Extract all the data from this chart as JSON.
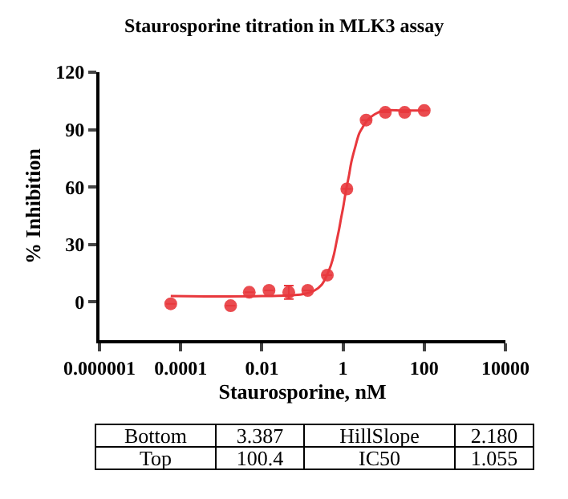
{
  "chart_data": {
    "type": "scatter",
    "title": "Staurosporine titration in MLK3 assay",
    "xlabel": "Staurosporine, nM",
    "ylabel": "% Inhibition",
    "log": "x",
    "xlim": [
      1e-06,
      10000
    ],
    "xticks": [
      {
        "value": 1e-06,
        "label": "0.000001"
      },
      {
        "value": 0.0001,
        "label": "0.0001"
      },
      {
        "value": 0.01,
        "label": "0.01"
      },
      1,
      100,
      10000
    ],
    "ylim": [
      -20,
      120
    ],
    "yticks": [
      0,
      30,
      60,
      90,
      120
    ],
    "grid": false,
    "series": [
      {
        "marker": "circle",
        "color": "#e8383d",
        "x": [
          5.7e-05,
          0.0017,
          0.0049,
          0.015,
          0.046,
          0.135,
          0.41,
          1.24,
          3.7,
          11,
          33,
          100
        ],
        "values": [
          -1,
          -2,
          5,
          6,
          5,
          6,
          14,
          59,
          95,
          99,
          99,
          100
        ],
        "errors": [
          null,
          null,
          null,
          null,
          3.5,
          null,
          null,
          null,
          null,
          null,
          null,
          null
        ]
      },
      {
        "type": "line",
        "marker": "none",
        "color": "#e8383d",
        "x": [
          5.7e-05,
          0.01,
          0.1,
          0.2,
          0.3,
          0.4,
          0.5,
          0.6,
          0.7,
          0.8,
          0.9,
          1,
          1.2,
          1.4,
          1.6,
          2,
          2.5,
          3,
          4,
          6,
          10,
          30,
          100
        ],
        "values": [
          3,
          3,
          4,
          6,
          9,
          14,
          19,
          25,
          32,
          38,
          44,
          49,
          59,
          66,
          73,
          81,
          88,
          91,
          95,
          98,
          100,
          100,
          100
        ]
      }
    ],
    "annotations": [
      "Bottom",
      "3.387",
      "HillSlope",
      "2.180",
      "Top",
      "100.4",
      "IC50",
      "1.055"
    ]
  }
}
